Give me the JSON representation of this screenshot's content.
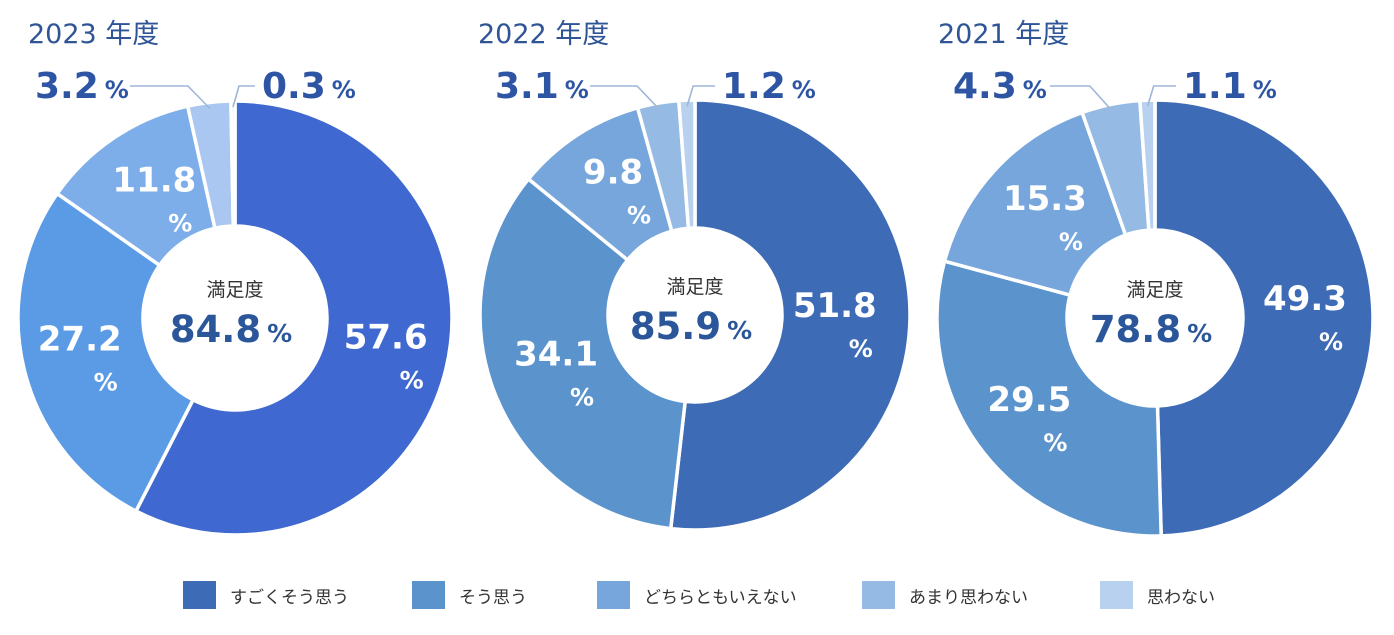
{
  "chart_data": [
    {
      "type": "pie",
      "title": "2023 年度",
      "center_label": "満足度",
      "center_value": "84.8",
      "unit": "%",
      "slices": [
        {
          "name": "すごくそう思う",
          "value": 57.6,
          "label": "57.6",
          "color": "#3f69d0"
        },
        {
          "name": "そう思う",
          "value": 27.2,
          "label": "27.2",
          "color": "#5b9be6"
        },
        {
          "name": "どちらともいえない",
          "value": 11.8,
          "label": "11.8",
          "color": "#7eaee9"
        },
        {
          "name": "あまり思わない",
          "value": 3.2,
          "label": "3.2",
          "color": "#a9c7f1"
        },
        {
          "name": "思わない",
          "value": 0.3,
          "label": "0.3",
          "color": "#c9dcf6"
        }
      ]
    },
    {
      "type": "pie",
      "title": "2022 年度",
      "center_label": "満足度",
      "center_value": "85.9",
      "unit": "%",
      "slices": [
        {
          "name": "すごくそう思う",
          "value": 51.8,
          "label": "51.8",
          "color": "#3e6bb5"
        },
        {
          "name": "そう思う",
          "value": 34.1,
          "label": "34.1",
          "color": "#5b93cd"
        },
        {
          "name": "どちらともいえない",
          "value": 9.8,
          "label": "9.8",
          "color": "#76a6dc"
        },
        {
          "name": "あまり思わない",
          "value": 3.1,
          "label": "3.1",
          "color": "#95bbe5"
        },
        {
          "name": "思わない",
          "value": 1.2,
          "label": "1.2",
          "color": "#b7d1ee"
        }
      ]
    },
    {
      "type": "pie",
      "title": "2021 年度",
      "center_label": "満足度",
      "center_value": "78.8",
      "unit": "%",
      "slices": [
        {
          "name": "すごくそう思う",
          "value": 49.3,
          "label": "49.3",
          "color": "#3e6bb5"
        },
        {
          "name": "そう思う",
          "value": 29.5,
          "label": "29.5",
          "color": "#5b93cd"
        },
        {
          "name": "どちらともいえない",
          "value": 15.3,
          "label": "15.3",
          "color": "#76a6dc"
        },
        {
          "name": "あまり思わない",
          "value": 4.3,
          "label": "4.3",
          "color": "#95bbe5"
        },
        {
          "name": "思わない",
          "value": 1.1,
          "label": "1.1",
          "color": "#b7d1ee"
        }
      ]
    }
  ],
  "legend": [
    {
      "label": "すごくそう思う",
      "color": "#3e6bb5"
    },
    {
      "label": "そう思う",
      "color": "#5b93cd"
    },
    {
      "label": "どちらともいえない",
      "color": "#76a6dc"
    },
    {
      "label": "あまり思わない",
      "color": "#95bbe5"
    },
    {
      "label": "思わない",
      "color": "#b7d1ee"
    }
  ],
  "colors": {
    "title_text": "#2f5597",
    "outside_label": "#2d55a3",
    "center_text": "#2b579a",
    "center_caption": "#333333",
    "inside_label": "#ffffff"
  }
}
